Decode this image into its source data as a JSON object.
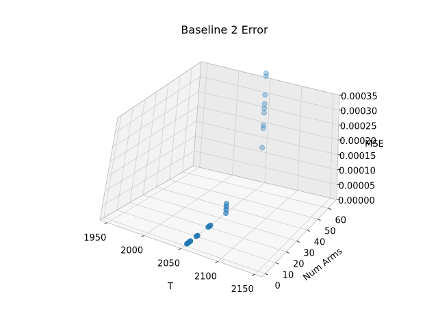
{
  "chart_data": {
    "type": "scatter",
    "projection": "3d",
    "title": "Baseline 2 Error",
    "xlabel": "T",
    "ylabel": "Num Arms",
    "zlabel": "MSE",
    "xlim": [
      1940,
      2160
    ],
    "ylim": [
      -3,
      68
    ],
    "zlim": [
      0,
      0.00035
    ],
    "xticks": [
      "1950",
      "2000",
      "2050",
      "2100",
      "2150"
    ],
    "yticks": [
      "0",
      "10",
      "20",
      "30",
      "40",
      "50",
      "60"
    ],
    "zticks": [
      "0.00000",
      "0.00005",
      "0.00010",
      "0.00015",
      "0.00020",
      "0.00025",
      "0.00030",
      "0.00035"
    ],
    "grid": true,
    "marker_color": "#1f77b4",
    "points": [
      {
        "x": 2050,
        "y": 2,
        "z": 0.0
      },
      {
        "x": 2050,
        "y": 3,
        "z": 0.0
      },
      {
        "x": 2050,
        "y": 4,
        "z": 0.0
      },
      {
        "x": 2050,
        "y": 5,
        "z": 0.0
      },
      {
        "x": 2050,
        "y": 10,
        "z": 0.0
      },
      {
        "x": 2050,
        "y": 11,
        "z": 0.0
      },
      {
        "x": 2050,
        "y": 20,
        "z": 0.0
      },
      {
        "x": 2050,
        "y": 21,
        "z": 0.0
      },
      {
        "x": 2050,
        "y": 22,
        "z": 0.0
      },
      {
        "x": 2050,
        "y": 35,
        "z": 0.0
      },
      {
        "x": 2050,
        "y": 35,
        "z": 1.2e-05
      },
      {
        "x": 2050,
        "y": 35,
        "z": 2.2e-05
      },
      {
        "x": 2050,
        "y": 35,
        "z": 3.2e-05
      },
      {
        "x": 2050,
        "y": 64,
        "z": 0.00013
      },
      {
        "x": 2050,
        "y": 64,
        "z": 0.000195
      },
      {
        "x": 2050,
        "y": 64,
        "z": 0.000205
      },
      {
        "x": 2050,
        "y": 64,
        "z": 0.000247
      },
      {
        "x": 2050,
        "y": 64,
        "z": 0.000262
      },
      {
        "x": 2050,
        "y": 64,
        "z": 0.000277
      },
      {
        "x": 2050,
        "y": 64,
        "z": 0.000307
      },
      {
        "x": 2050,
        "y": 64,
        "z": 0.00037
      },
      {
        "x": 2050,
        "y": 64,
        "z": 0.00038
      }
    ]
  }
}
